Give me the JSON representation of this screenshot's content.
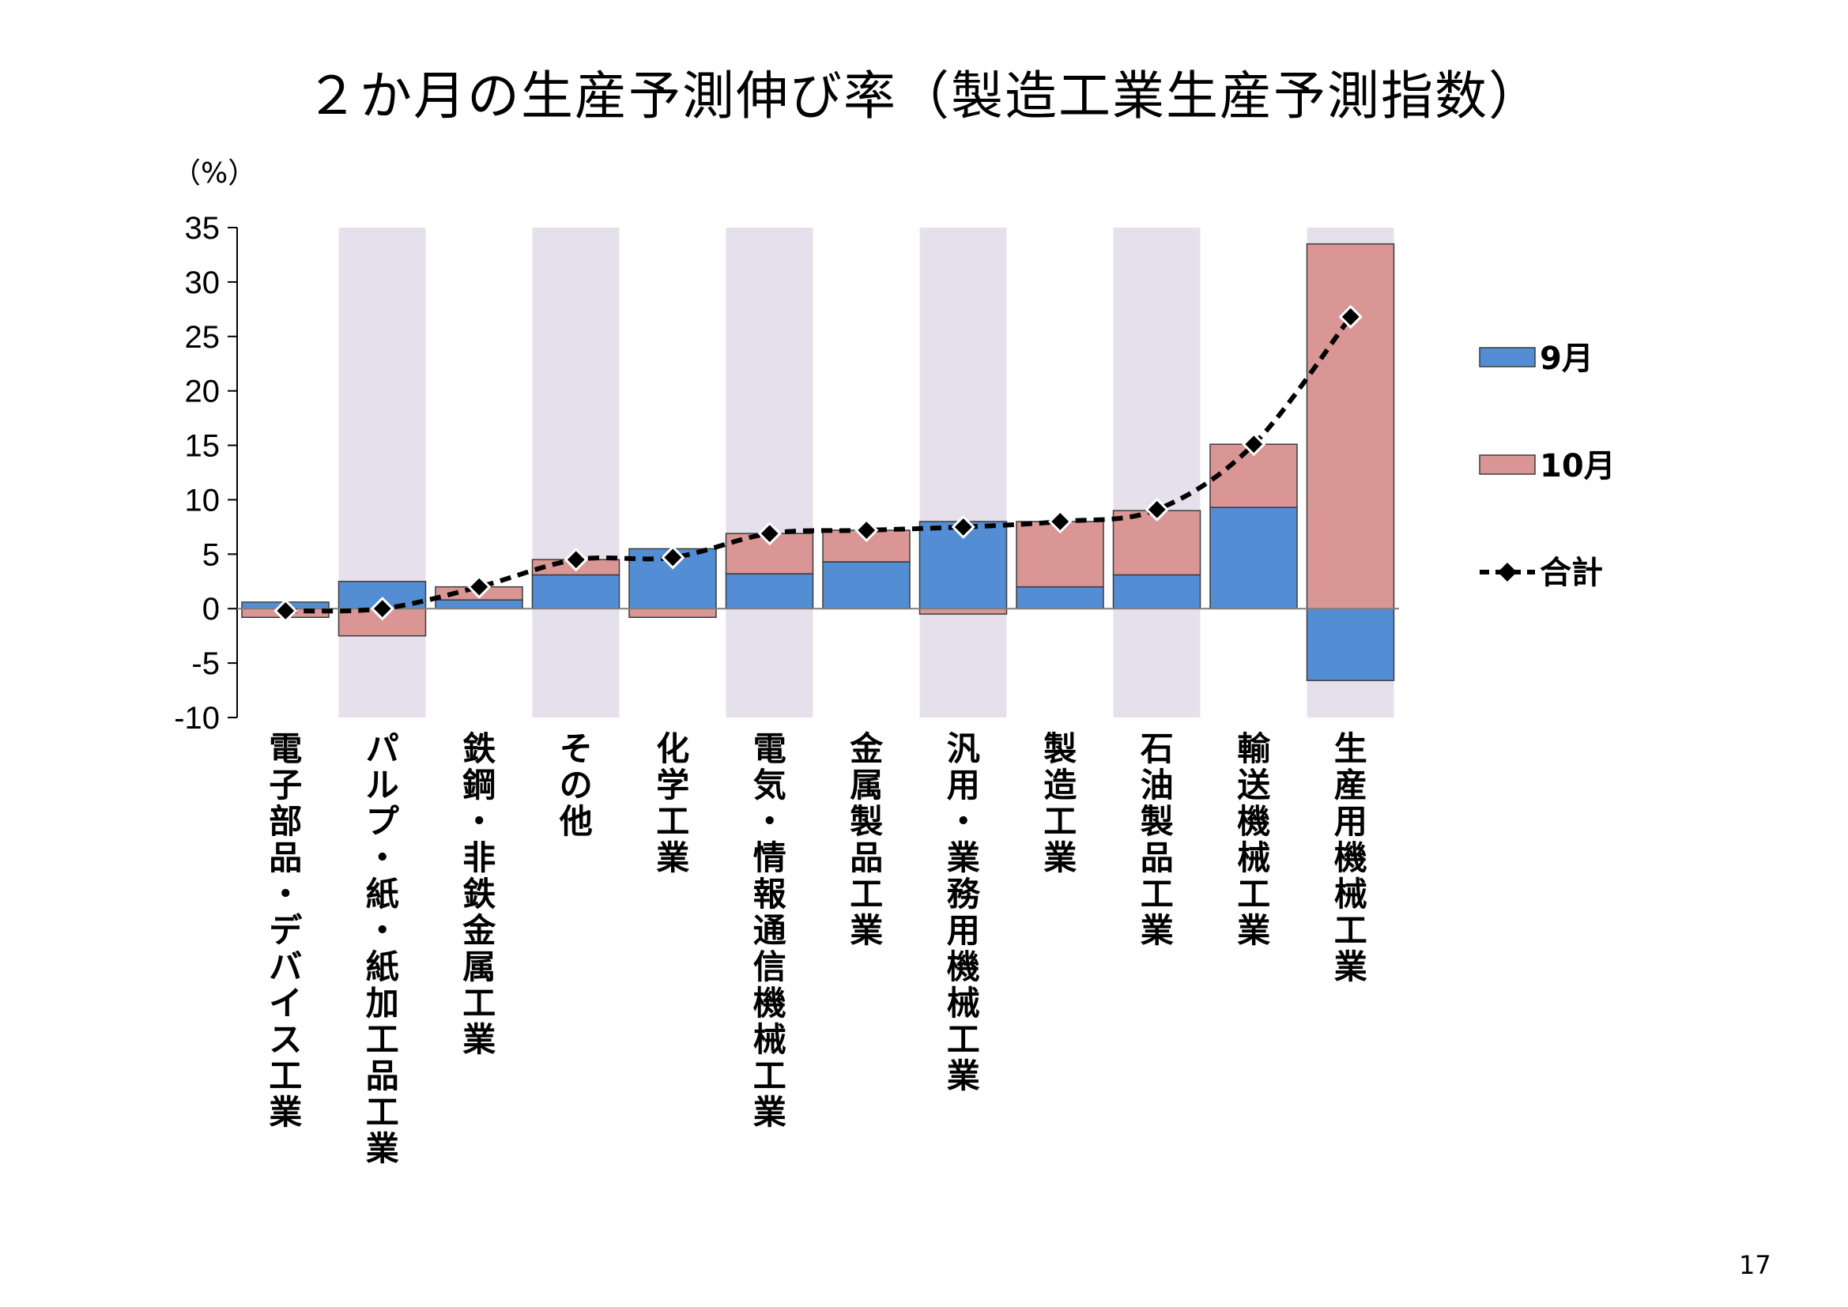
{
  "page": {
    "title": "２か月の生産予測伸び率（製造工業生産予測指数）",
    "unit": "（%）",
    "page_number": "17"
  },
  "chart_data": {
    "type": "bar",
    "stacked": true,
    "title": "２か月の生産予測伸び率（製造工業生産予測指数）",
    "ylabel": "（%）",
    "ylim": [
      -10,
      35
    ],
    "yticks": [
      35,
      30,
      25,
      20,
      15,
      10,
      5,
      0,
      -5,
      -10
    ],
    "ytick_labels": [
      "35",
      "30",
      "25",
      "20",
      "15",
      "10",
      "5",
      "0",
      "-5",
      "-10"
    ],
    "legend_position": "right",
    "shaded_categories": [
      1,
      3,
      5,
      7,
      9,
      11
    ],
    "categories": [
      "電子部品・デバイス工業",
      "パルプ・紙・紙加工品工業",
      "鉄鋼・非鉄金属工業",
      "その他",
      "化学工業",
      "電気・情報通信機械工業",
      "金属製品工業",
      "汎用・業務用機械工業",
      "製造工業",
      "石油製品工業",
      "輸送機械工業",
      "生産用機械工業"
    ],
    "series": [
      {
        "name": "9月",
        "type": "bar",
        "color": "#538ed5",
        "values": [
          0.6,
          2.5,
          0.8,
          3.1,
          5.5,
          3.2,
          4.3,
          8.0,
          2.0,
          3.1,
          9.3,
          -6.6
        ]
      },
      {
        "name": "10月",
        "type": "bar",
        "color": "#d99694",
        "values": [
          -0.8,
          -2.5,
          1.2,
          1.4,
          -0.8,
          3.7,
          2.9,
          -0.5,
          6.0,
          5.9,
          5.8,
          33.5
        ]
      },
      {
        "name": "合計",
        "type": "line",
        "color": "#000000",
        "values": [
          -0.2,
          0.0,
          2.0,
          4.5,
          4.7,
          6.9,
          7.2,
          7.5,
          8.0,
          9.1,
          15.1,
          26.8
        ]
      }
    ],
    "colors": {
      "sep": "#538ed5",
      "oct": "#d99694",
      "total": "#000000",
      "shade": "#e6e0ec",
      "border": "#3c3c3c"
    }
  }
}
